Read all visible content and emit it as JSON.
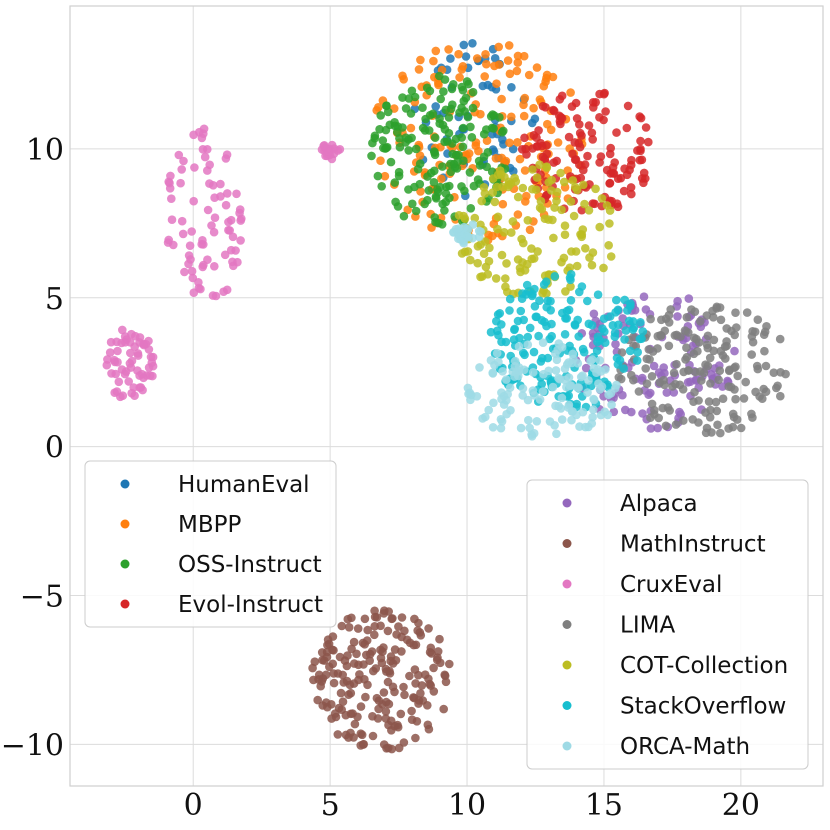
{
  "chart_data": {
    "type": "scatter",
    "title": "",
    "xlabel": "",
    "ylabel": "",
    "xlim": [
      -4.5,
      23.0
    ],
    "ylim": [
      -11.4,
      14.8
    ],
    "xticks": [
      0,
      5,
      10,
      15,
      20
    ],
    "yticks": [
      -10,
      -5,
      0,
      5,
      10
    ],
    "xtick_labels": [
      "0",
      "5",
      "10",
      "15",
      "20"
    ],
    "ytick_labels": [
      "−10",
      "−5",
      "0",
      "5",
      "10"
    ],
    "grid": true,
    "legends": [
      {
        "placement": "middle-left",
        "entries": [
          "HumanEval",
          "MBPP",
          "OSS-Instruct",
          "Evol-Instruct"
        ]
      },
      {
        "placement": "bottom-right",
        "entries": [
          "Alpaca",
          "MathInstruct",
          "CruxEval",
          "LIMA",
          "COT-Collection",
          "StackOverflow",
          "ORCA-Math"
        ]
      }
    ],
    "series": [
      {
        "name": "HumanEval",
        "color": "#1f77b4",
        "clusters": [
          {
            "x": [
              8.0,
              12.5
            ],
            "y": [
              8.3,
              13.8
            ],
            "n": 60
          }
        ]
      },
      {
        "name": "MBPP",
        "color": "#ff7f0e",
        "clusters": [
          {
            "x": [
              6.5,
              14.5
            ],
            "y": [
              6.9,
              13.6
            ],
            "n": 170
          }
        ]
      },
      {
        "name": "OSS-Instruct",
        "color": "#2ca02c",
        "clusters": [
          {
            "x": [
              6.5,
              11.5
            ],
            "y": [
              7.3,
              12.5
            ],
            "n": 170
          }
        ]
      },
      {
        "name": "Evol-Instruct",
        "color": "#d62728",
        "clusters": [
          {
            "x": [
              12.0,
              16.8
            ],
            "y": [
              7.8,
              12.0
            ],
            "n": 130
          }
        ]
      },
      {
        "name": "Alpaca",
        "color": "#9467bd",
        "clusters": [
          {
            "x": [
              13.8,
              19.8
            ],
            "y": [
              0.6,
              5.2
            ],
            "n": 120
          }
        ]
      },
      {
        "name": "MathInstruct",
        "color": "#8c564b",
        "clusters": [
          {
            "x": [
              4.3,
              9.5
            ],
            "y": [
              -10.2,
              -5.5
            ],
            "n": 200
          }
        ]
      },
      {
        "name": "CruxEval",
        "color": "#e377c2",
        "clusters": [
          {
            "x": [
              -3.3,
              -1.4
            ],
            "y": [
              1.6,
              4.0
            ],
            "n": 60
          },
          {
            "x": [
              -1.1,
              1.8
            ],
            "y": [
              4.5,
              10.7
            ],
            "n": 80
          },
          {
            "x": [
              4.6,
              5.4
            ],
            "y": [
              9.6,
              10.2
            ],
            "n": 20
          }
        ]
      },
      {
        "name": "LIMA",
        "color": "#7f7f7f",
        "clusters": [
          {
            "x": [
              15.5,
              21.8
            ],
            "y": [
              0.4,
              4.8
            ],
            "n": 170
          }
        ]
      },
      {
        "name": "COT-Collection",
        "color": "#bcbd22",
        "clusters": [
          {
            "x": [
              9.5,
              15.5
            ],
            "y": [
              5.0,
              9.5
            ],
            "n": 140
          }
        ]
      },
      {
        "name": "StackOverflow",
        "color": "#17becf",
        "clusters": [
          {
            "x": [
              10.8,
              16.5
            ],
            "y": [
              1.2,
              5.8
            ],
            "n": 180
          }
        ]
      },
      {
        "name": "ORCA-Math",
        "color": "#9edae5",
        "clusters": [
          {
            "x": [
              10.0,
              15.5
            ],
            "y": [
              0.2,
              3.5
            ],
            "n": 130
          },
          {
            "x": [
              9.5,
              10.5
            ],
            "y": [
              6.8,
              7.6
            ],
            "n": 25
          }
        ]
      }
    ]
  }
}
